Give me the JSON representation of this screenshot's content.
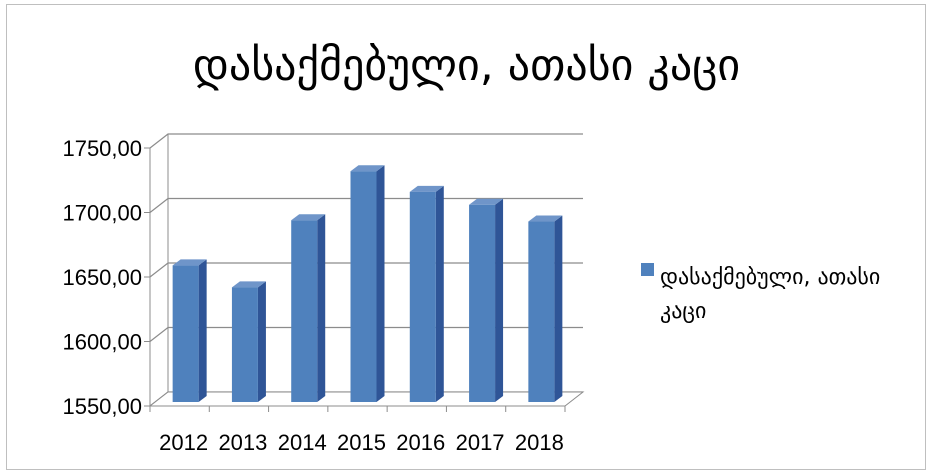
{
  "chart_data": {
    "type": "bar",
    "title": "დასაქმებული, ათასი კაცი",
    "categories": [
      "2012",
      "2013",
      "2014",
      "2015",
      "2016",
      "2017",
      "2018"
    ],
    "series": [
      {
        "name": "დასაქმებული, ათასი კაცი",
        "values": [
          1659,
          1642,
          1694,
          1732,
          1716,
          1706,
          1693
        ]
      }
    ],
    "ylim": [
      1550,
      1750
    ],
    "yticks": [
      "1750,00",
      "1700,00",
      "1650,00",
      "1600,00",
      "1550,00"
    ],
    "grid": true,
    "legend_position": "right",
    "legend_lines": [
      "დასაქმებული, ათასი",
      "კაცი"
    ],
    "colors": {
      "bar": "#4f81bd",
      "bar_side": "#2f5597",
      "bar_top": "#6f95c9"
    }
  }
}
